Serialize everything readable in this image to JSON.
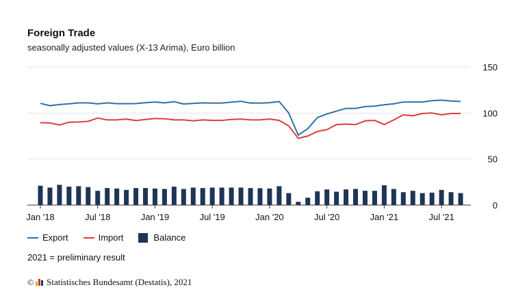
{
  "header": {
    "title": "Foreign Trade",
    "subtitle": "seasonally adjusted values (X-13 Arima), Euro billion"
  },
  "legend": {
    "export_label": "Export",
    "import_label": "Import",
    "balance_label": "Balance"
  },
  "note": "2021 = preliminary result",
  "source": {
    "copyright_symbol": "©",
    "text": "Statistisches Bundesamt (Destatis), 2021"
  },
  "colors": {
    "export": "#2f6fa8",
    "import": "#e23b3b",
    "balance": "#1d3557",
    "grid": "#e3e3e3",
    "logo_bars": [
      "#d8a400",
      "#c0392b",
      "#1d3557"
    ]
  },
  "chart_data": {
    "type": "bar",
    "x": [
      "Jan '18",
      "Feb '18",
      "Mar '18",
      "Apr '18",
      "May '18",
      "Jun '18",
      "Jul '18",
      "Aug '18",
      "Sep '18",
      "Oct '18",
      "Nov '18",
      "Dec '18",
      "Jan '19",
      "Feb '19",
      "Mar '19",
      "Apr '19",
      "May '19",
      "Jun '19",
      "Jul '19",
      "Aug '19",
      "Sep '19",
      "Oct '19",
      "Nov '19",
      "Dec '19",
      "Jan '20",
      "Feb '20",
      "Mar '20",
      "Apr '20",
      "May '20",
      "Jun '20",
      "Jul '20",
      "Aug '20",
      "Sep '20",
      "Oct '20",
      "Nov '20",
      "Dec '20",
      "Jan '21",
      "Feb '21",
      "Mar '21",
      "Apr '21",
      "May '21",
      "Jun '21",
      "Jul '21",
      "Aug '21",
      "Sep '21"
    ],
    "x_tick_labels": [
      "Jan '18",
      "Jul '18",
      "Jan '19",
      "Jul '19",
      "Jan '20",
      "Jul '20",
      "Jan '21",
      "Jul '21"
    ],
    "y_ticks": [
      0,
      50,
      100,
      150
    ],
    "ylim": [
      0,
      150
    ],
    "y_axis_position": "right",
    "grid": true,
    "legend_position": "bottom-left",
    "series": [
      {
        "name": "Export",
        "type": "line",
        "values": [
          110.5,
          108.0,
          109.2,
          110.0,
          111.0,
          111.0,
          110.0,
          111.0,
          110.2,
          110.2,
          110.3,
          111.2,
          112.0,
          111.0,
          112.3,
          109.8,
          110.4,
          111.0,
          110.8,
          110.8,
          111.8,
          112.7,
          110.8,
          110.8,
          111.2,
          112.5,
          100.0,
          76.0,
          83.0,
          95.0,
          99.0,
          102.0,
          105.0,
          105.0,
          107.0,
          107.5,
          109.0,
          110.0,
          112.0,
          112.0,
          112.0,
          113.5,
          114.0,
          113.0,
          112.5
        ]
      },
      {
        "name": "Import",
        "type": "line",
        "values": [
          89.5,
          89.2,
          87.0,
          90.0,
          90.2,
          91.0,
          94.5,
          92.5,
          92.5,
          93.5,
          91.8,
          93.0,
          94.0,
          93.8,
          92.5,
          92.5,
          91.5,
          92.5,
          92.0,
          92.0,
          93.0,
          93.5,
          92.5,
          92.5,
          93.5,
          92.0,
          86.0,
          72.5,
          75.0,
          80.0,
          82.0,
          87.5,
          88.0,
          87.5,
          91.5,
          92.0,
          87.5,
          92.5,
          98.0,
          97.0,
          99.5,
          100.0,
          98.0,
          99.5,
          99.5
        ]
      },
      {
        "name": "Balance",
        "type": "bar",
        "values": [
          21.0,
          19.0,
          22.0,
          20.0,
          20.5,
          19.5,
          15.5,
          18.5,
          18.0,
          16.5,
          18.5,
          18.5,
          18.0,
          17.5,
          20.0,
          17.5,
          19.0,
          18.5,
          19.0,
          19.0,
          19.0,
          19.0,
          18.5,
          18.3,
          18.0,
          20.5,
          13.0,
          3.5,
          8.0,
          15.0,
          17.0,
          14.5,
          17.0,
          17.5,
          15.5,
          15.5,
          21.5,
          17.5,
          14.0,
          15.5,
          13.0,
          13.5,
          16.5,
          14.0,
          13.0
        ]
      }
    ]
  }
}
